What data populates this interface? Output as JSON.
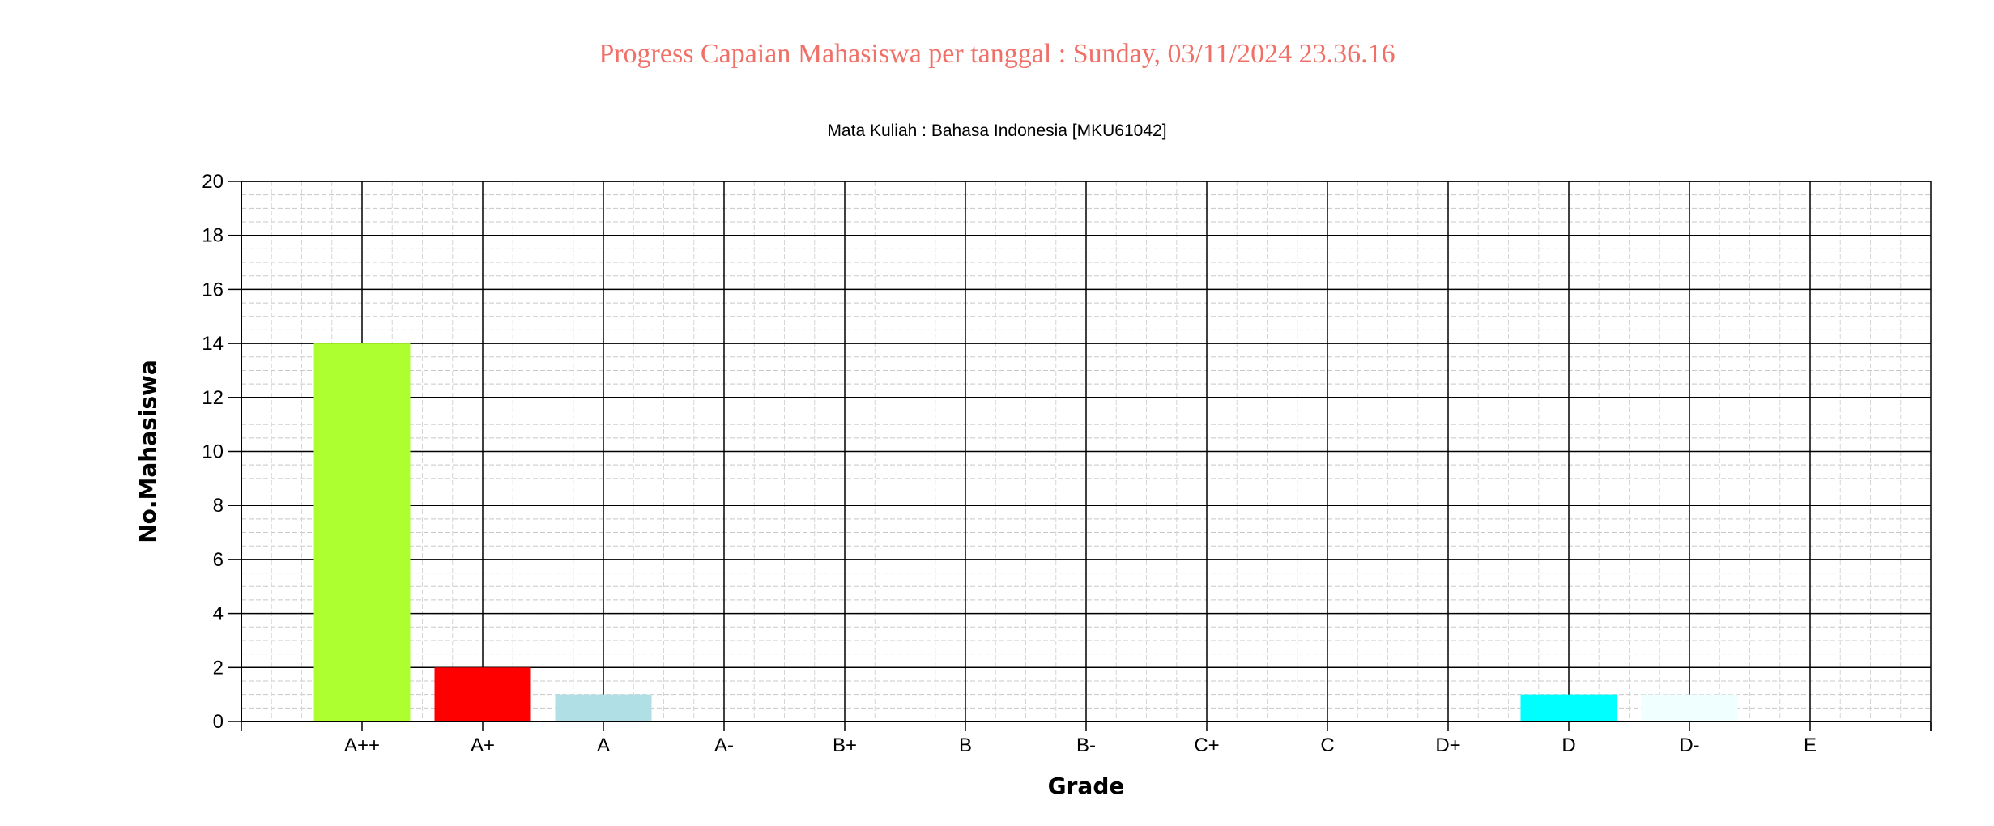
{
  "page": {
    "title": "Progress Capaian Mahasiswa per tanggal : Sunday, 03/11/2024 23.36.16"
  },
  "chart_data": {
    "type": "bar",
    "title": "Mata Kuliah : Bahasa Indonesia [MKU61042]",
    "xlabel": "Grade",
    "ylabel": "No.Mahasiswa",
    "categories": [
      "A++",
      "A+",
      "A",
      "A-",
      "B+",
      "B",
      "B-",
      "C+",
      "C",
      "D+",
      "D",
      "D-",
      "E"
    ],
    "values": [
      14,
      2,
      1,
      0,
      0,
      0,
      0,
      0,
      0,
      0,
      1,
      1,
      0
    ],
    "colors": [
      "#adff2f",
      "#ff0000",
      "#b0e0e6",
      "#ffffff",
      "#ffffff",
      "#ffffff",
      "#ffffff",
      "#ffffff",
      "#ffffff",
      "#ffffff",
      "#00ffff",
      "#f0ffff",
      "#ffffff"
    ],
    "ylim": [
      0,
      20
    ],
    "yticks": [
      0,
      2,
      4,
      6,
      8,
      10,
      12,
      14,
      16,
      18,
      20
    ],
    "grid": true,
    "legend": "none"
  }
}
